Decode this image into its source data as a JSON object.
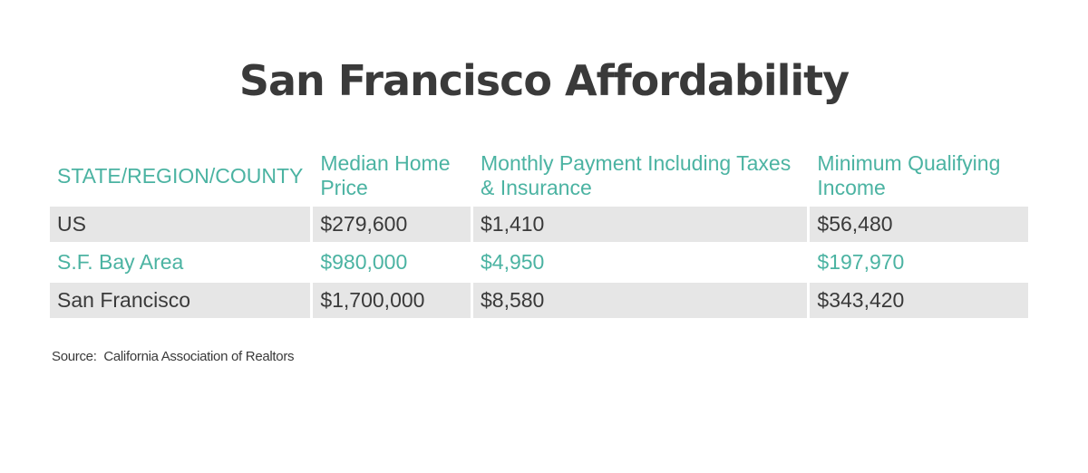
{
  "chart_data": {
    "type": "table",
    "title": "San Francisco Affordability",
    "columns": [
      "STATE/REGION/COUNTY",
      "Median Home Price",
      "Monthly Payment Including Taxes & Insurance",
      "Minimum Qualifying Income"
    ],
    "rows": [
      {
        "region": "US",
        "median_home_price": "$279,600",
        "monthly_payment": "$1,410",
        "min_income": "$56,480"
      },
      {
        "region": "S.F. Bay Area",
        "median_home_price": "$980,000",
        "monthly_payment": "$4,950",
        "min_income": "$197,970"
      },
      {
        "region": "San Francisco",
        "median_home_price": "$1,700,000",
        "monthly_payment": "$8,580",
        "min_income": "$343,420"
      }
    ],
    "source": "Source:  California Association of Realtors"
  },
  "colors": {
    "accent": "#4bb3a2",
    "row_shade": "#e6e6e6",
    "text": "#3a3a3a"
  }
}
